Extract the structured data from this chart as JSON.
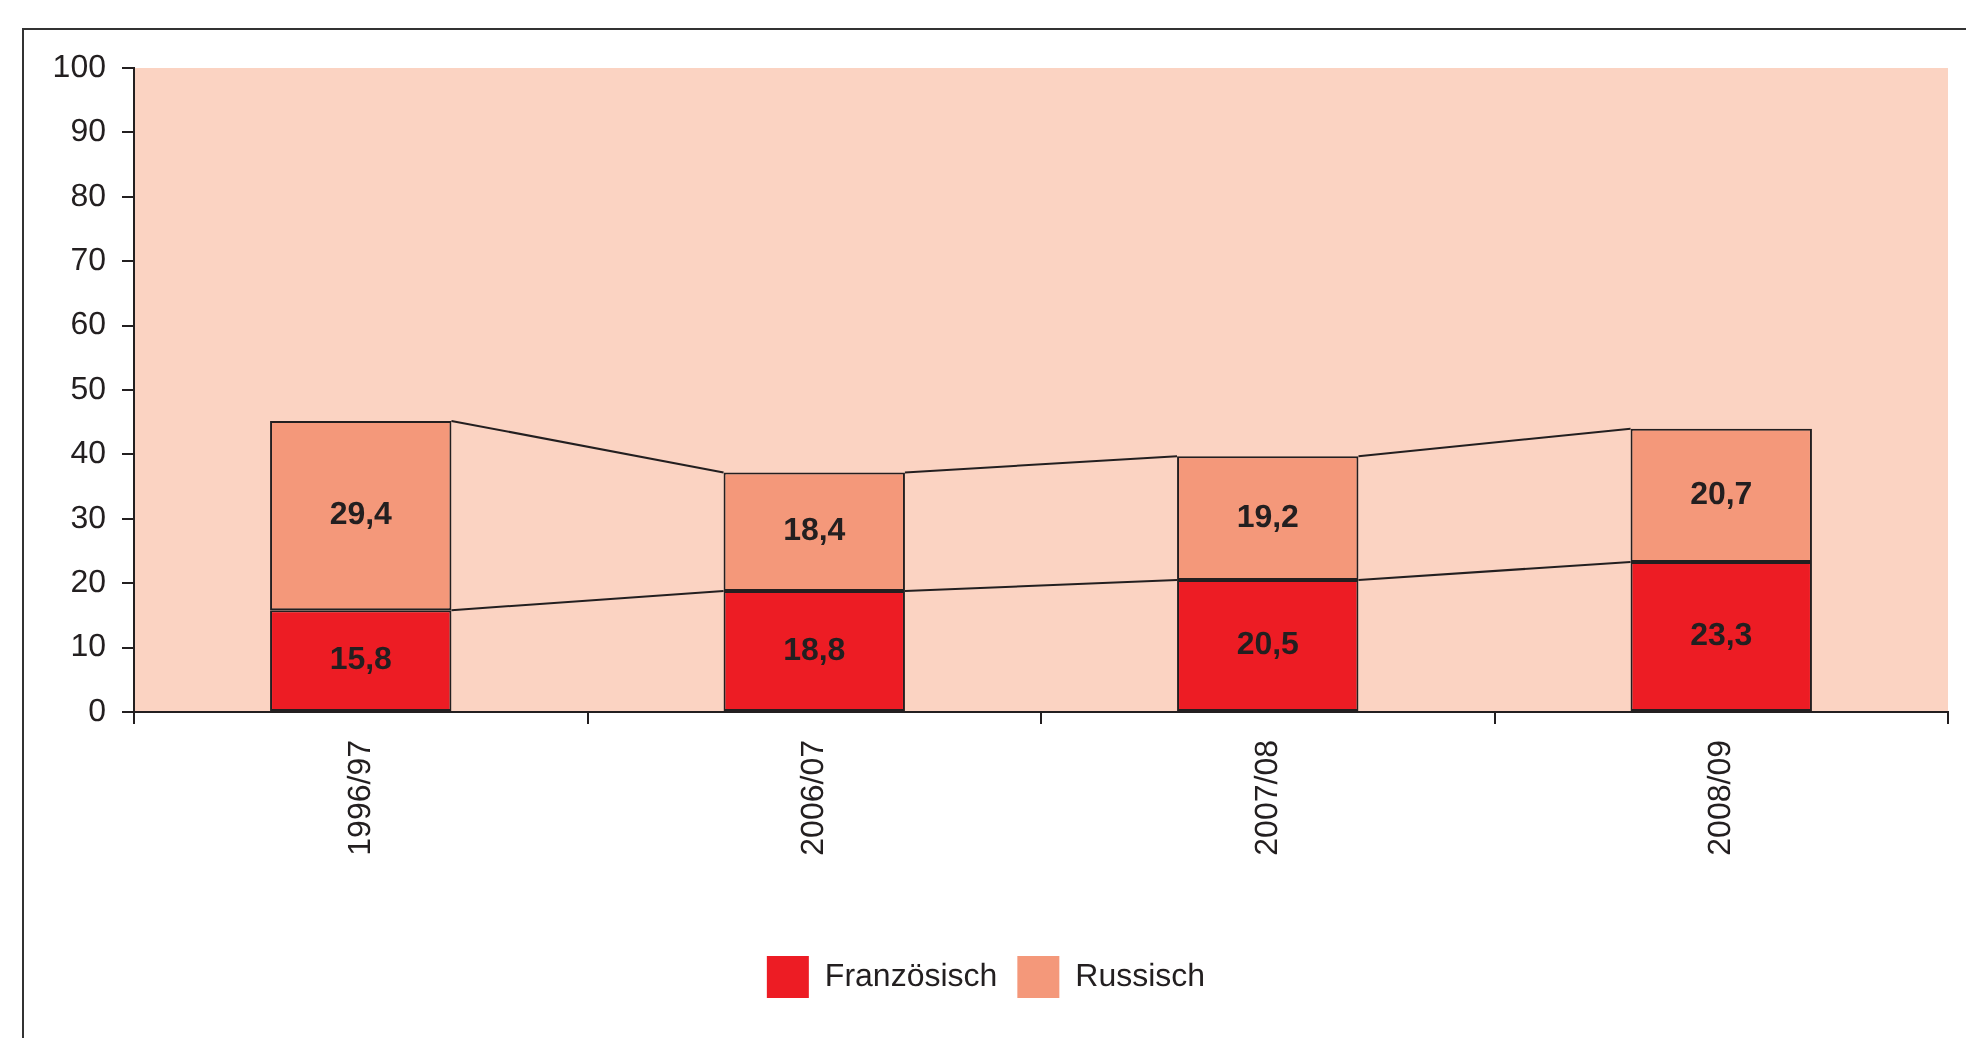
{
  "chart_data": {
    "type": "bar",
    "stacked": true,
    "categories": [
      "1996/97",
      "2006/07",
      "2007/08",
      "2008/09"
    ],
    "series": [
      {
        "name": "Französisch",
        "color": "#ed1c24",
        "values": [
          15.8,
          18.8,
          20.5,
          23.3
        ],
        "value_labels": [
          "15,8",
          "18,8",
          "20,5",
          "23,3"
        ]
      },
      {
        "name": "Russisch",
        "color": "#f4987a",
        "values": [
          29.4,
          18.4,
          19.2,
          20.7
        ],
        "value_labels": [
          "29,4",
          "18,4",
          "19,2",
          "20,7"
        ]
      }
    ],
    "ylim": [
      0,
      100
    ],
    "yticks": [
      0,
      10,
      20,
      30,
      40,
      50,
      60,
      70,
      80,
      90,
      100
    ],
    "grid": false,
    "legend": "bottom"
  }
}
